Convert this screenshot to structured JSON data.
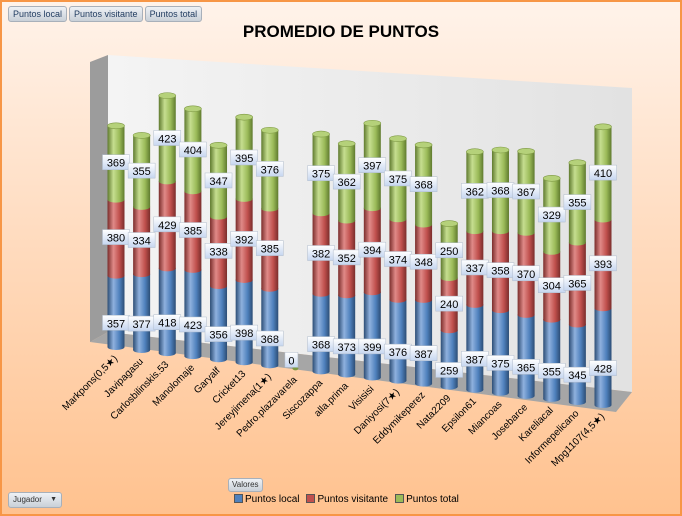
{
  "field_buttons": [
    "Puntos local",
    "Puntos visitante",
    "Puntos total"
  ],
  "values_button": "Valores",
  "axis_field": {
    "label": "Jugador",
    "icon": "dropdown-arrow-icon"
  },
  "colors": {
    "local": "#4f81bd",
    "visitante": "#c0504d",
    "total": "#9bbb59"
  },
  "chart_data": {
    "type": "bar",
    "stacked": true,
    "style": "3d-cylinder",
    "title": "PROMEDIO DE PUNTOS",
    "legend_position": "bottom",
    "categories": [
      "Markpons(0,5★)",
      "Javipagasu",
      "Carlosbilinskis.53",
      "Manolomaje",
      "Garyalf",
      "Cricket13",
      "Jereyjimena(1★)",
      "Pedro.plazavarela",
      "Siscozappa",
      "alla.prima",
      "Visisisi",
      "Daniyosi(7★)",
      "Eddymikeperez",
      "Nata2209",
      "Epsilon61",
      "Miancoas",
      "Josebarce",
      "Kareliacal",
      "Informepelicano",
      "Mpg1107(4,5★)"
    ],
    "series": [
      {
        "name": "Puntos local",
        "values": [
          357,
          377,
          418,
          423,
          356,
          398,
          368,
          0,
          368,
          373,
          399,
          376,
          387,
          259,
          387,
          375,
          365,
          355,
          345,
          428
        ]
      },
      {
        "name": "Puntos visitante",
        "values": [
          380,
          334,
          429,
          385,
          338,
          392,
          385,
          0,
          382,
          352,
          394,
          374,
          348,
          240,
          337,
          358,
          370,
          304,
          365,
          393
        ]
      },
      {
        "name": "Puntos total",
        "values": [
          369,
          355,
          423,
          404,
          347,
          395,
          376,
          0,
          375,
          362,
          397,
          375,
          368,
          250,
          362,
          368,
          367,
          329,
          355,
          410
        ]
      }
    ]
  }
}
